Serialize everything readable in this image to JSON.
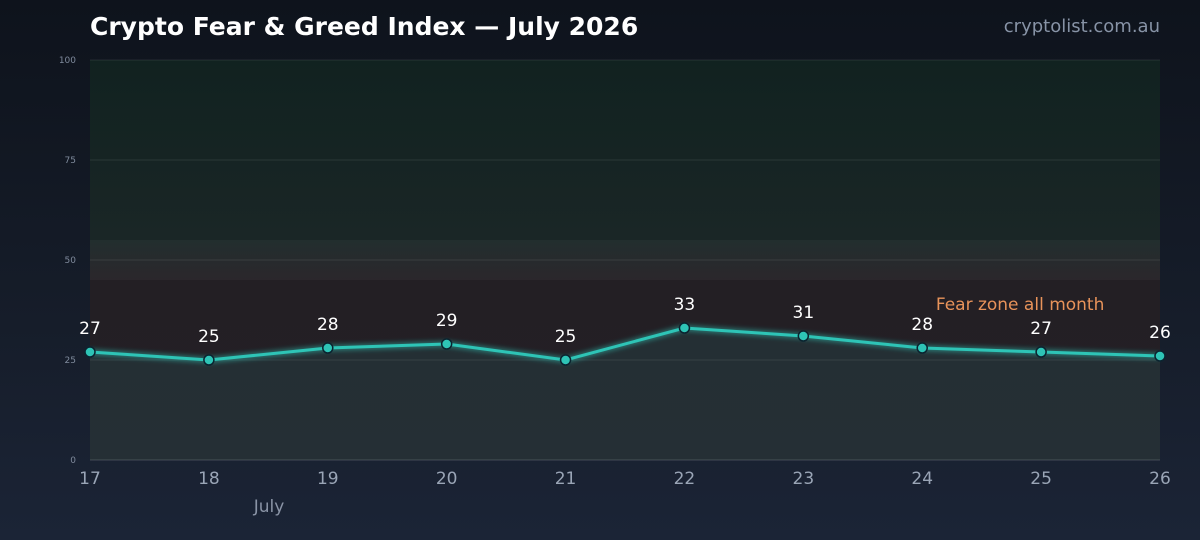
{
  "header": {
    "title": "Crypto Fear & Greed Index — July 2026",
    "source": "cryptolist.com.au"
  },
  "colors": {
    "line": "#2ec4b6",
    "annotation": "#e8935a",
    "marker_stroke": "#0b2430"
  },
  "chart_data": {
    "type": "line",
    "title": "Crypto Fear & Greed Index — July 2026",
    "xlabel": "July",
    "ylabel": "",
    "categories": [
      "17",
      "18",
      "19",
      "20",
      "21",
      "22",
      "23",
      "24",
      "25",
      "26"
    ],
    "series": [
      {
        "values": [
          27,
          25,
          28,
          29,
          25,
          33,
          31,
          28,
          27,
          26
        ]
      }
    ],
    "ylim": [
      0,
      100
    ],
    "yticks": [
      "0",
      "25",
      "50",
      "75",
      "100"
    ],
    "grid": true,
    "neutral_band": [
      45,
      55
    ],
    "annotation": {
      "text": "Fear zone all month",
      "anchor_category": "25",
      "anchor_value": 38
    },
    "data_labels": true
  }
}
